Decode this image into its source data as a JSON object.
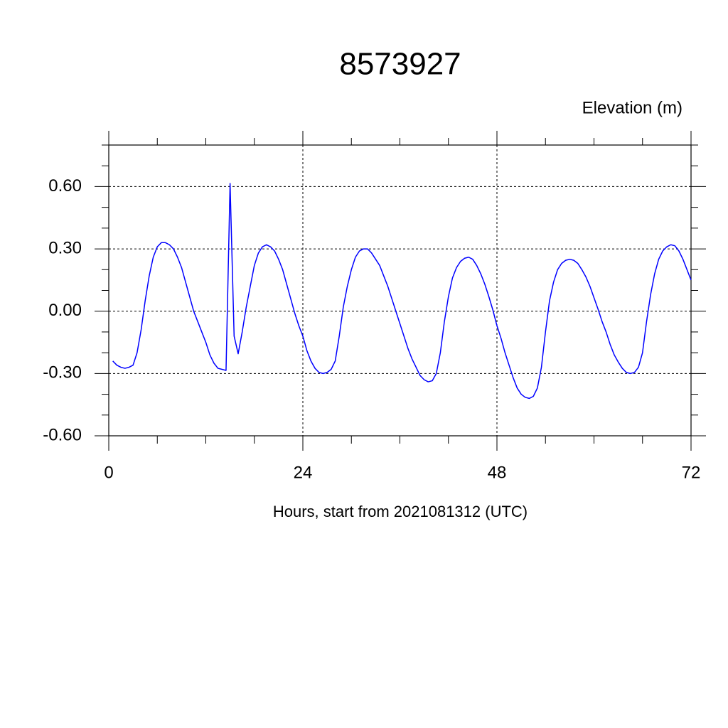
{
  "chart_data": {
    "type": "line",
    "title": "8573927",
    "ylabel": "Elevation (m)",
    "xlabel": "Hours, start from 2021081312 (UTC)",
    "x": [
      0.5,
      1,
      1.5,
      2,
      2.5,
      3,
      3.5,
      4,
      4.5,
      5,
      5.5,
      6,
      6.5,
      7,
      7.5,
      8,
      8.5,
      9,
      9.5,
      10,
      10.5,
      11,
      11.5,
      12,
      12.5,
      13,
      13.5,
      14,
      14.5,
      15,
      15.5,
      16,
      16.5,
      17,
      17.5,
      18,
      18.5,
      19,
      19.5,
      20,
      20.5,
      21,
      21.5,
      22,
      22.5,
      23,
      23.5,
      24,
      24.5,
      25,
      25.5,
      26,
      26.5,
      27,
      27.5,
      28,
      28.5,
      29,
      29.5,
      30,
      30.5,
      31,
      31.5,
      32,
      32.5,
      33,
      33.5,
      34,
      34.5,
      35,
      35.5,
      36,
      36.5,
      37,
      37.5,
      38,
      38.5,
      39,
      39.5,
      40,
      40.5,
      41,
      41.5,
      42,
      42.5,
      43,
      43.5,
      44,
      44.5,
      45,
      45.5,
      46,
      46.5,
      47,
      47.5,
      48,
      48.5,
      49,
      49.5,
      50,
      50.5,
      51,
      51.5,
      52,
      52.5,
      53,
      53.5,
      54,
      54.5,
      55,
      55.5,
      56,
      56.5,
      57,
      57.5,
      58,
      58.5,
      59,
      59.5,
      60,
      60.5,
      61,
      61.5,
      62,
      62.5,
      63,
      63.5,
      64,
      64.5,
      65,
      65.5,
      66,
      66.5,
      67,
      67.5,
      68,
      68.5,
      69,
      69.5,
      70,
      70.5,
      71,
      71.5,
      72
    ],
    "series": [
      {
        "color": "#0000ff",
        "values": [
          -0.24,
          -0.26,
          -0.27,
          -0.275,
          -0.27,
          -0.26,
          -0.2,
          -0.09,
          0.05,
          0.17,
          0.26,
          0.31,
          0.33,
          0.33,
          0.32,
          0.3,
          0.26,
          0.21,
          0.14,
          0.07,
          0.0,
          -0.05,
          -0.1,
          -0.15,
          -0.21,
          -0.25,
          -0.275,
          -0.28,
          -0.285,
          0.615,
          -0.12,
          -0.205,
          -0.1,
          0.02,
          0.12,
          0.22,
          0.28,
          0.31,
          0.32,
          0.31,
          0.29,
          0.25,
          0.2,
          0.13,
          0.06,
          -0.01,
          -0.07,
          -0.12,
          -0.19,
          -0.24,
          -0.275,
          -0.295,
          -0.3,
          -0.295,
          -0.28,
          -0.24,
          -0.12,
          0.02,
          0.12,
          0.2,
          0.26,
          0.29,
          0.3,
          0.3,
          0.28,
          0.25,
          0.22,
          0.17,
          0.12,
          0.06,
          0.0,
          -0.06,
          -0.12,
          -0.18,
          -0.23,
          -0.27,
          -0.31,
          -0.33,
          -0.34,
          -0.335,
          -0.3,
          -0.2,
          -0.05,
          0.07,
          0.16,
          0.21,
          0.24,
          0.255,
          0.26,
          0.25,
          0.22,
          0.18,
          0.13,
          0.07,
          0.005,
          -0.07,
          -0.13,
          -0.2,
          -0.26,
          -0.32,
          -0.37,
          -0.4,
          -0.415,
          -0.42,
          -0.41,
          -0.37,
          -0.27,
          -0.1,
          0.05,
          0.14,
          0.2,
          0.23,
          0.245,
          0.25,
          0.245,
          0.23,
          0.2,
          0.165,
          0.12,
          0.065,
          0.01,
          -0.05,
          -0.1,
          -0.16,
          -0.21,
          -0.245,
          -0.275,
          -0.295,
          -0.3,
          -0.295,
          -0.27,
          -0.2,
          -0.05,
          0.08,
          0.18,
          0.25,
          0.29,
          0.31,
          0.32,
          0.315,
          0.29,
          0.25,
          0.2,
          0.15
        ]
      }
    ],
    "xlim": [
      0,
      72
    ],
    "ylim": [
      -0.6,
      0.8
    ],
    "xticks": [
      0,
      24,
      48,
      72
    ],
    "yticks": [
      {
        "value": -0.6,
        "label": "-0.60"
      },
      {
        "value": -0.3,
        "label": "-0.30"
      },
      {
        "value": 0,
        "label": "0.00"
      },
      {
        "value": 0.3,
        "label": "0.30"
      },
      {
        "value": 0.6,
        "label": "0.60"
      }
    ],
    "xminorticks": [
      6,
      12,
      18,
      30,
      36,
      42,
      54,
      60,
      66
    ],
    "yminorticks": [
      -0.5,
      -0.4,
      -0.2,
      -0.1,
      0.1,
      0.2,
      0.4,
      0.5,
      0.7,
      0.8
    ],
    "grid": true
  }
}
